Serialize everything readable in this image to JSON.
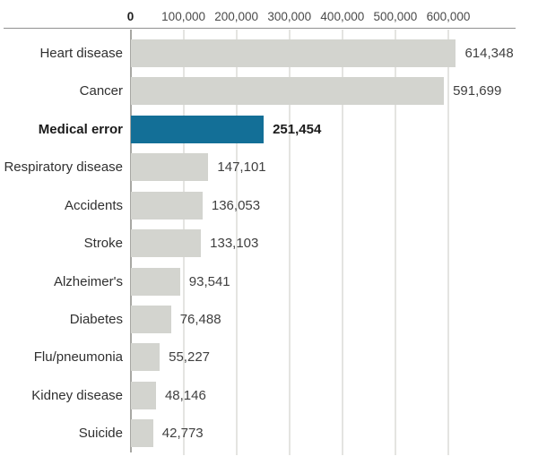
{
  "chart_data": {
    "type": "bar",
    "orientation": "horizontal",
    "title": "",
    "categories": [
      "Heart disease",
      "Cancer",
      "Medical error",
      "Respiratory disease",
      "Accidents",
      "Stroke",
      "Alzheimer's",
      "Diabetes",
      "Flu/pneumonia",
      "Kidney disease",
      "Suicide"
    ],
    "values": [
      614348,
      591699,
      251454,
      147101,
      136053,
      133103,
      93541,
      76488,
      55227,
      48146,
      42773
    ],
    "value_labels": [
      "614,348",
      "591,699",
      "251,454",
      "147,101",
      "136,053",
      "133,103",
      "93,541",
      "76,488",
      "55,227",
      "48,146",
      "42,773"
    ],
    "highlight_index": 2,
    "highlight_category": "Medical error",
    "xlim": [
      0,
      600000
    ],
    "x_ticks": [
      0,
      100000,
      200000,
      300000,
      400000,
      500000,
      600000
    ],
    "x_tick_labels": [
      "0",
      "100,000",
      "200,000",
      "300,000",
      "400,000",
      "500,000",
      "600,000"
    ],
    "xlabel": "",
    "ylabel": "",
    "legend": "none",
    "grid": "vertical",
    "colors": {
      "bar_default": "#d3d4cf",
      "bar_highlight": "#136f97",
      "grid_line": "#e4e4e1",
      "zero_axis_line": "#a7a7a3",
      "top_rule": "#909090",
      "category_text": "#303030",
      "value_text": "#3f3f3f",
      "highlight_text": "#1a1a1a",
      "tick_text": "#4a4a4a"
    }
  }
}
